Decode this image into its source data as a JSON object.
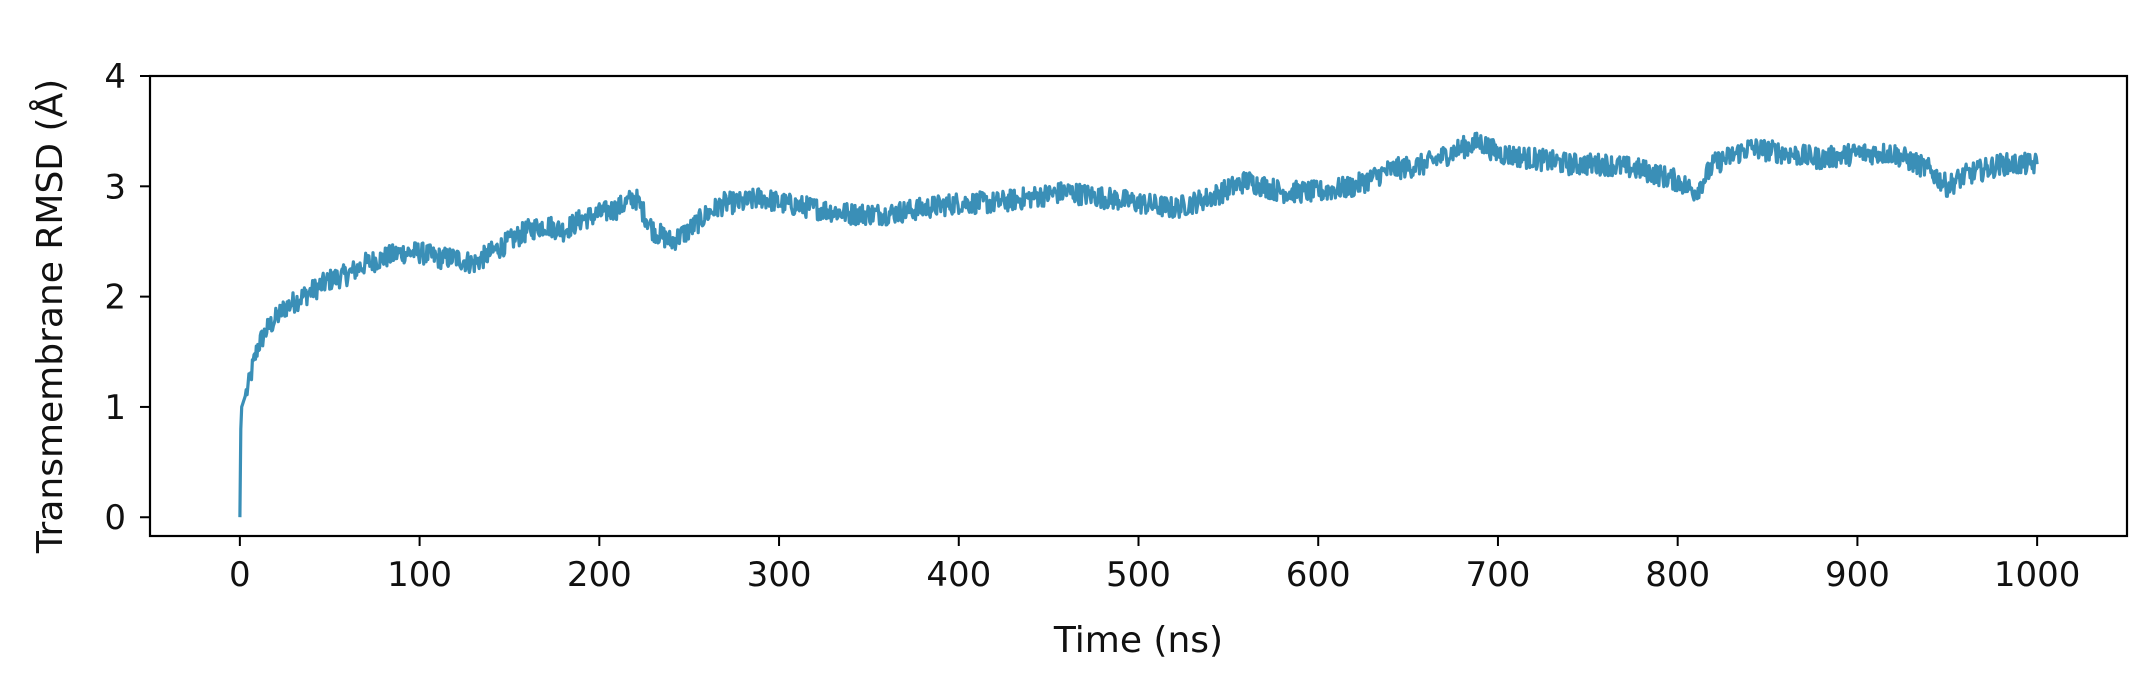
{
  "chart_data": {
    "type": "line",
    "title": "",
    "xlabel": "Time (ns)",
    "ylabel": "Transmembrane RMSD (Å)",
    "xlim": [
      -50,
      1050
    ],
    "ylim": [
      -0.17,
      4
    ],
    "xticks": [
      0,
      100,
      200,
      300,
      400,
      500,
      600,
      700,
      800,
      900,
      1000
    ],
    "xtick_labels": [
      "0",
      "100",
      "200",
      "300",
      "400",
      "500",
      "600",
      "700",
      "800",
      "900",
      "1000"
    ],
    "yticks": [
      0,
      1,
      2,
      3,
      4
    ],
    "ytick_labels": [
      "0",
      "1",
      "2",
      "3",
      "4"
    ],
    "grid": false,
    "legend": "none",
    "color": "#3a8fb7",
    "series": [
      {
        "x": [
          0,
          0.5,
          1,
          2,
          3,
          5,
          7,
          10,
          15,
          20,
          25,
          30,
          40,
          50,
          60,
          70,
          80,
          90,
          100,
          110,
          120,
          130,
          140,
          150,
          160,
          170,
          180,
          190,
          200,
          210,
          220,
          230,
          240,
          250,
          260,
          270,
          280,
          290,
          300,
          320,
          340,
          360,
          380,
          400,
          420,
          440,
          460,
          480,
          500,
          520,
          540,
          560,
          580,
          600,
          620,
          640,
          660,
          680,
          690,
          700,
          720,
          740,
          760,
          780,
          800,
          810,
          820,
          840,
          860,
          880,
          900,
          920,
          940,
          950,
          960,
          980,
          1000
        ],
        "y": [
          0.0,
          0.8,
          1.0,
          1.05,
          1.1,
          1.2,
          1.35,
          1.55,
          1.7,
          1.8,
          1.9,
          1.95,
          2.05,
          2.15,
          2.2,
          2.3,
          2.35,
          2.4,
          2.4,
          2.35,
          2.35,
          2.3,
          2.4,
          2.5,
          2.6,
          2.65,
          2.6,
          2.7,
          2.75,
          2.8,
          2.9,
          2.6,
          2.5,
          2.6,
          2.75,
          2.85,
          2.85,
          2.9,
          2.85,
          2.8,
          2.75,
          2.75,
          2.8,
          2.85,
          2.85,
          2.9,
          2.95,
          2.9,
          2.85,
          2.8,
          2.9,
          3.05,
          2.95,
          2.95,
          3.0,
          3.15,
          3.2,
          3.35,
          3.4,
          3.3,
          3.25,
          3.2,
          3.2,
          3.15,
          3.05,
          2.95,
          3.2,
          3.35,
          3.3,
          3.25,
          3.3,
          3.3,
          3.15,
          3.0,
          3.1,
          3.2,
          3.2
        ]
      }
    ]
  }
}
